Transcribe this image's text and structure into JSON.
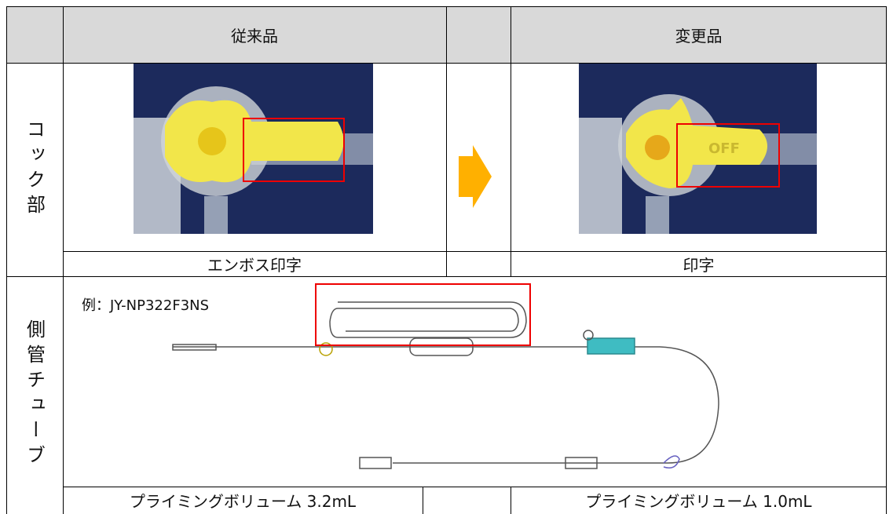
{
  "header": {
    "columns": [
      "従来品",
      "変更品"
    ]
  },
  "rows": [
    {
      "label": "コック部",
      "captions": [
        "エンボス印字",
        "印字"
      ]
    },
    {
      "label": "側管チューブ",
      "example": "例：JY-NP322F3NS",
      "captions": [
        "プライミングボリューム 3.2mL",
        "プライミングボリューム 1.0mL"
      ]
    }
  ],
  "photo_labels": [
    "OFF"
  ]
}
